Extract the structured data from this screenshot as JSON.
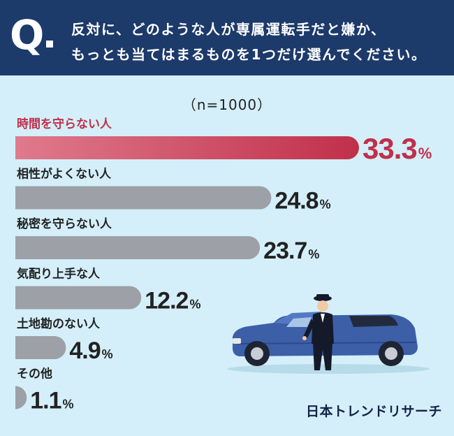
{
  "question": {
    "mark": "Q",
    "line1": "反対に、どのような人が専属運転手だと嫌か、",
    "line2": "もっとも当てはまるものを1つだけ選んでください。"
  },
  "sample_size": "（n=1000）",
  "logo": "日本トレンドリサーチ",
  "colors": {
    "header": "#1c3a6a",
    "background": "#d4eff9",
    "highlight": "#c0304a",
    "bar": "#9ea0a7",
    "text": "#222222"
  },
  "chart_data": {
    "type": "bar",
    "orientation": "horizontal",
    "categories": [
      "時間を守らない人",
      "相性がよくない人",
      "秘密を守らない人",
      "気配り上手な人",
      "土地勘のない人",
      "その他"
    ],
    "values": [
      33.3,
      24.8,
      23.7,
      12.2,
      4.9,
      1.1
    ],
    "value_labels": [
      "33.3",
      "24.8",
      "23.7",
      "12.2",
      "4.9",
      "1.1"
    ],
    "unit": "%",
    "highlight_index": 0,
    "xlim": [
      0,
      33.3
    ],
    "grid": false,
    "legend": "none"
  }
}
